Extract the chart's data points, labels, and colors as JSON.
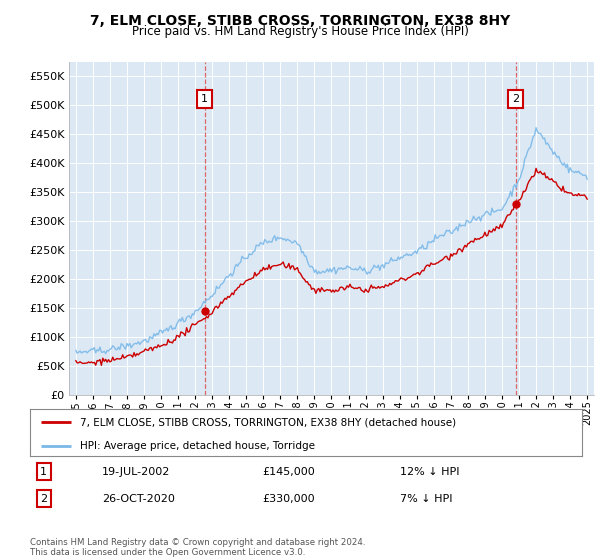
{
  "title": "7, ELM CLOSE, STIBB CROSS, TORRINGTON, EX38 8HY",
  "subtitle": "Price paid vs. HM Land Registry's House Price Index (HPI)",
  "title_fontsize": 10,
  "subtitle_fontsize": 8.5,
  "ylabel_ticks": [
    "£0",
    "£50K",
    "£100K",
    "£150K",
    "£200K",
    "£250K",
    "£300K",
    "£350K",
    "£400K",
    "£450K",
    "£500K",
    "£550K"
  ],
  "ytick_values": [
    0,
    50000,
    100000,
    150000,
    200000,
    250000,
    300000,
    350000,
    400000,
    450000,
    500000,
    550000
  ],
  "ylim": [
    0,
    575000
  ],
  "plot_bg_color": "#dce9f5",
  "hpi_color": "#7ab8e8",
  "price_color": "#cc0000",
  "annotation1_date": "19-JUL-2002",
  "annotation1_price": 145000,
  "annotation1_label": "£145,000",
  "annotation1_text": "12% ↓ HPI",
  "annotation2_date": "26-OCT-2020",
  "annotation2_price": 330000,
  "annotation2_label": "£330,000",
  "annotation2_text": "7% ↓ HPI",
  "sale1_year_float": 2002.55,
  "sale2_year_float": 2020.82,
  "legend_label1": "7, ELM CLOSE, STIBB CROSS, TORRINGTON, EX38 8HY (detached house)",
  "legend_label2": "HPI: Average price, detached house, Torridge",
  "footer": "Contains HM Land Registry data © Crown copyright and database right 2024.\nThis data is licensed under the Open Government Licence v3.0.",
  "xtick_years": [
    1995,
    1996,
    1997,
    1998,
    1999,
    2000,
    2001,
    2002,
    2003,
    2004,
    2005,
    2006,
    2007,
    2008,
    2009,
    2010,
    2011,
    2012,
    2013,
    2014,
    2015,
    2016,
    2017,
    2018,
    2019,
    2020,
    2021,
    2022,
    2023,
    2024,
    2025
  ],
  "hpi_breakpoints": [
    1995,
    1996,
    1997,
    1998,
    1999,
    2000,
    2001,
    2002,
    2003,
    2004,
    2005,
    2006,
    2007,
    2008,
    2009,
    2010,
    2011,
    2012,
    2013,
    2014,
    2015,
    2016,
    2017,
    2018,
    2019,
    2020,
    2021,
    2022,
    2023,
    2024,
    2025
  ],
  "hpi_values_base": [
    70000,
    72000,
    78000,
    85000,
    95000,
    108000,
    125000,
    145000,
    175000,
    210000,
    240000,
    265000,
    275000,
    265000,
    215000,
    215000,
    220000,
    215000,
    220000,
    235000,
    245000,
    265000,
    280000,
    300000,
    310000,
    320000,
    370000,
    455000,
    415000,
    385000,
    375000
  ],
  "red_breakpoints": [
    1995,
    1996,
    1997,
    1998,
    1999,
    2000,
    2001,
    2002,
    2003,
    2004,
    2005,
    2006,
    2007,
    2008,
    2009,
    2010,
    2011,
    2012,
    2013,
    2014,
    2015,
    2016,
    2017,
    2018,
    2019,
    2020,
    2021,
    2022,
    2023,
    2024,
    2025
  ],
  "red_values_base": [
    60000,
    62000,
    66000,
    72000,
    80000,
    90000,
    105000,
    125000,
    148000,
    175000,
    200000,
    220000,
    228000,
    218000,
    180000,
    178000,
    182000,
    178000,
    183000,
    195000,
    205000,
    222000,
    238000,
    258000,
    272000,
    285000,
    330000,
    380000,
    360000,
    340000,
    335000
  ]
}
